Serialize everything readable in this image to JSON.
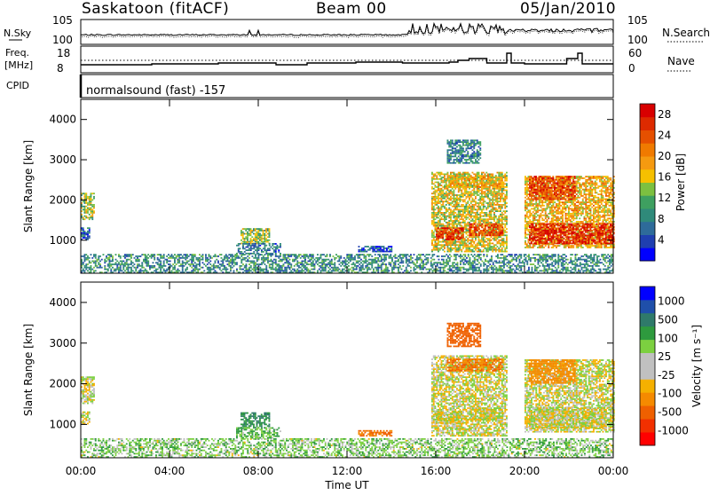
{
  "header": {
    "station": "Saskatoon (fitACF)",
    "beam": "Beam 00",
    "date": "05/Jan/2010"
  },
  "params": {
    "nsky_label": "N.Sky",
    "nsky_ticks": [
      "10^5",
      "10^0"
    ],
    "nsearch_label": "N.Search",
    "nsearch_ticks": [
      "10^5",
      "10^0"
    ],
    "freq_label": "Freq.",
    "freq_unit": "[MHz]",
    "freq_ticks": [
      "18",
      "8"
    ],
    "nave_label": "Nave",
    "nave_ticks": [
      "60",
      "0"
    ],
    "cpid_label": "CPID",
    "cpid_text": "normalsound (fast) -157"
  },
  "colors": {
    "power": [
      "#0000ff",
      "#1f3fb0",
      "#2e6b9a",
      "#2f8a7a",
      "#3ea060",
      "#7cc040",
      "#f6c000",
      "#f59a10",
      "#f07a00",
      "#e65000",
      "#dd2a00",
      "#d80000"
    ],
    "velocity": [
      "#ff0000",
      "#f23000",
      "#ef6000",
      "#f58a00",
      "#f5b000",
      "#c0c0c0",
      "#c0c0c0",
      "#7cd040",
      "#2e9a3e",
      "#2f7a6a",
      "#1f4faa",
      "#0000ff"
    ]
  },
  "chart_data": {
    "type": "heatmap",
    "x_ticks": [
      "00:00",
      "04:00",
      "08:00",
      "12:00",
      "16:00",
      "20:00",
      "00:00"
    ],
    "xlabel": "Time UT",
    "xlim_hours": [
      0,
      24
    ],
    "ylim_km": [
      180,
      4500
    ],
    "panels": [
      {
        "name": "power",
        "ylabel": "Slant Range [km]",
        "y_ticks": [
          "1000",
          "2000",
          "3000",
          "4000"
        ],
        "colorbar_label": "Power [dB]",
        "colorbar_ticks": [
          "4",
          "8",
          "12",
          "16",
          "20",
          "24",
          "28"
        ],
        "scale_range": [
          0,
          30
        ]
      },
      {
        "name": "velocity",
        "ylabel": "Slant Range [km]",
        "y_ticks": [
          "1000",
          "2000",
          "3000",
          "4000"
        ],
        "colorbar_label": "Velocity [m s^-1]",
        "colorbar_ticks": [
          "1000",
          "500",
          "100",
          "25",
          "-25",
          "-100",
          "-500",
          "-1000"
        ]
      }
    ],
    "echo_regions": [
      {
        "t": [
          0.0,
          0.6
        ],
        "r": [
          1500,
          2150
        ],
        "power": 14,
        "velocity": 0
      },
      {
        "t": [
          0.0,
          0.4
        ],
        "r": [
          1000,
          1300
        ],
        "power": 6,
        "velocity": 0
      },
      {
        "t": [
          0.0,
          24.0
        ],
        "r": [
          180,
          650
        ],
        "power": 9,
        "velocity": 60
      },
      {
        "t": [
          7.2,
          8.5
        ],
        "r": [
          900,
          1300
        ],
        "power": 14,
        "velocity": 300
      },
      {
        "t": [
          7.0,
          9.0
        ],
        "r": [
          650,
          900
        ],
        "power": 7,
        "velocity": 100
      },
      {
        "t": [
          12.5,
          14.0
        ],
        "r": [
          700,
          850
        ],
        "power": 5,
        "velocity": -300
      },
      {
        "t": [
          15.8,
          19.2
        ],
        "r": [
          700,
          2700
        ],
        "power": 16,
        "velocity": 0
      },
      {
        "t": [
          16.0,
          17.2
        ],
        "r": [
          1000,
          1300
        ],
        "power": 26,
        "velocity": 0
      },
      {
        "t": [
          17.5,
          19.0
        ],
        "r": [
          1100,
          1400
        ],
        "power": 25,
        "velocity": 0
      },
      {
        "t": [
          16.5,
          18.0
        ],
        "r": [
          2900,
          3500
        ],
        "power": 8,
        "velocity": -400
      },
      {
        "t": [
          16.5,
          19.0
        ],
        "r": [
          2300,
          2600
        ],
        "power": 18,
        "velocity": -300
      },
      {
        "t": [
          20.0,
          24.0
        ],
        "r": [
          800,
          2600
        ],
        "power": 18,
        "velocity": 0
      },
      {
        "t": [
          20.2,
          24.0
        ],
        "r": [
          900,
          1400
        ],
        "power": 27,
        "velocity": 0
      },
      {
        "t": [
          20.2,
          22.3
        ],
        "r": [
          2000,
          2600
        ],
        "power": 25,
        "velocity": -200
      }
    ]
  }
}
